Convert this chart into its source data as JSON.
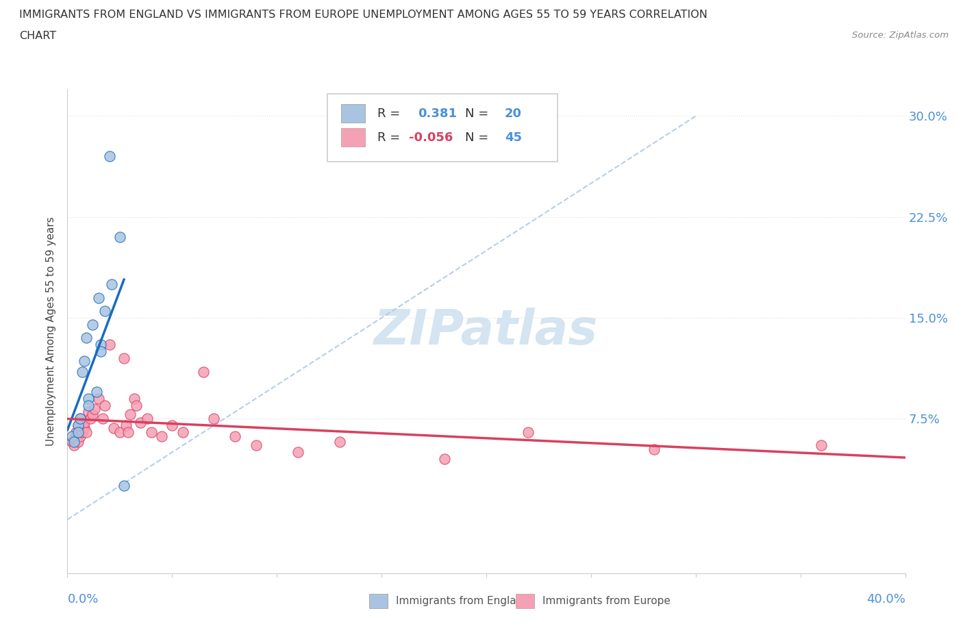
{
  "title_line1": "IMMIGRANTS FROM ENGLAND VS IMMIGRANTS FROM EUROPE UNEMPLOYMENT AMONG AGES 55 TO 59 YEARS CORRELATION",
  "title_line2": "CHART",
  "source": "Source: ZipAtlas.com",
  "ylabel": "Unemployment Among Ages 55 to 59 years",
  "ytick_labels": [
    "7.5%",
    "15.0%",
    "22.5%",
    "30.0%"
  ],
  "ytick_values": [
    7.5,
    15.0,
    22.5,
    30.0
  ],
  "legend_england_r": "0.381",
  "legend_england_n": "20",
  "legend_europe_r": "-0.056",
  "legend_europe_n": "45",
  "england_color": "#a8c4e0",
  "europe_color": "#f4a0b5",
  "england_line_color": "#1a6bbf",
  "europe_line_color": "#d94060",
  "dashed_line_color": "#b0c8e8",
  "watermark_color": "#d4e4f0",
  "xlim": [
    0.0,
    40.0
  ],
  "ylim": [
    -4.0,
    32.0
  ],
  "xtick_positions": [
    0.0,
    5.0,
    10.0,
    15.0,
    20.0,
    25.0,
    30.0,
    35.0,
    40.0
  ],
  "background_color": "#ffffff",
  "grid_color": "#dddddd",
  "england_scatter_x": [
    0.2,
    0.3,
    0.5,
    0.5,
    0.6,
    0.7,
    0.8,
    0.9,
    1.0,
    1.0,
    1.2,
    1.4,
    1.5,
    1.6,
    1.6,
    1.8,
    2.0,
    2.1,
    2.5,
    2.7
  ],
  "england_scatter_y": [
    6.2,
    5.8,
    7.0,
    6.5,
    7.5,
    11.0,
    11.8,
    13.5,
    9.0,
    8.5,
    14.5,
    9.5,
    16.5,
    13.0,
    12.5,
    15.5,
    27.0,
    17.5,
    21.0,
    2.5
  ],
  "europe_scatter_x": [
    0.2,
    0.3,
    0.3,
    0.4,
    0.4,
    0.5,
    0.5,
    0.6,
    0.6,
    0.7,
    0.8,
    0.8,
    0.9,
    1.0,
    1.1,
    1.2,
    1.3,
    1.5,
    1.7,
    1.8,
    2.0,
    2.2,
    2.5,
    2.7,
    2.8,
    2.9,
    3.0,
    3.2,
    3.3,
    3.5,
    3.8,
    4.0,
    4.5,
    5.0,
    5.5,
    6.5,
    7.0,
    8.0,
    9.0,
    11.0,
    13.0,
    18.0,
    22.0,
    28.0,
    36.0
  ],
  "europe_scatter_y": [
    5.8,
    5.5,
    6.0,
    6.2,
    6.5,
    5.8,
    7.0,
    6.2,
    7.5,
    6.5,
    6.8,
    7.2,
    6.5,
    8.0,
    7.5,
    7.8,
    8.2,
    9.0,
    7.5,
    8.5,
    13.0,
    6.8,
    6.5,
    12.0,
    7.0,
    6.5,
    7.8,
    9.0,
    8.5,
    7.2,
    7.5,
    6.5,
    6.2,
    7.0,
    6.5,
    11.0,
    7.5,
    6.2,
    5.5,
    5.0,
    5.8,
    4.5,
    6.5,
    5.2,
    5.5
  ],
  "england_line_x": [
    0.0,
    2.7
  ],
  "england_line_y_start": 5.5,
  "england_line_y_end": 16.5,
  "europe_line_x": [
    0.0,
    40.0
  ],
  "europe_line_y_start": 6.8,
  "europe_line_y_end": 5.5,
  "dash_line_x": [
    0.0,
    30.0
  ],
  "dash_line_y": [
    0.0,
    30.0
  ]
}
